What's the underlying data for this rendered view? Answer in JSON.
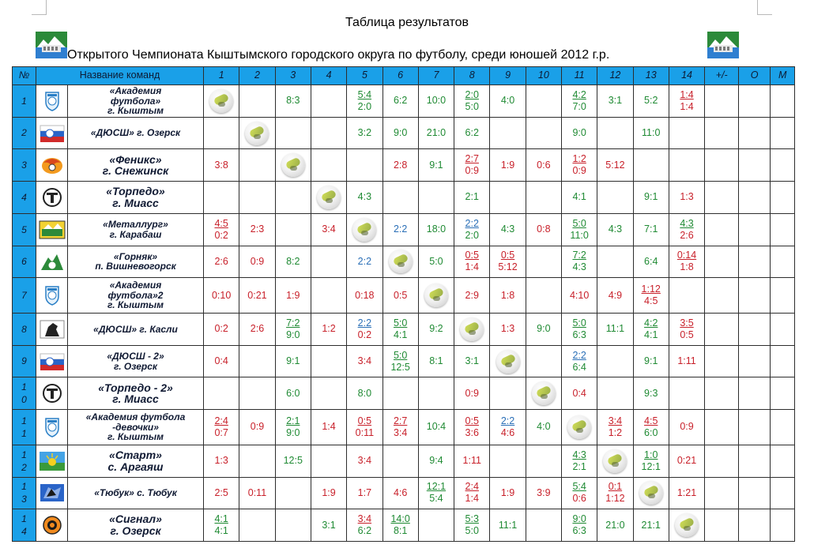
{
  "header": {
    "title": "Таблица результатов",
    "subtitle": "Открытого Чемпионата Кыштымского городского округа по футболу, среди юношей 2012 г.р."
  },
  "columns": {
    "num": "№",
    "name": "Название команд",
    "rounds": [
      "1",
      "2",
      "3",
      "4",
      "5",
      "6",
      "7",
      "8",
      "9",
      "10",
      "11",
      "12",
      "13",
      "14"
    ],
    "diff": "+/-",
    "points": "О",
    "place": "М"
  },
  "colors": {
    "header_bg": "#1aa0e8",
    "win": "#1f8a33",
    "loss": "#c8202a",
    "draw": "#2a6fb7"
  },
  "rows": [
    {
      "num": [
        "1"
      ],
      "logo": "shield-logo-icon",
      "team_lines": [
        "«Академия",
        "футбола»",
        "г. Кыштым"
      ],
      "results": [
        {
          "ball": true
        },
        {},
        {
          "t": "8:3",
          "c": "win"
        },
        {},
        {
          "t": "5:4",
          "b": "2:0",
          "c": "win"
        },
        {
          "t": "6:2",
          "c": "win"
        },
        {
          "t": "10:0",
          "c": "win"
        },
        {
          "t": "2:0",
          "b": "5:0",
          "c": "win"
        },
        {
          "t": "4:0",
          "c": "win"
        },
        {},
        {
          "t": "4:2",
          "b": "7:0",
          "c": "win"
        },
        {
          "t": "3:1",
          "c": "win"
        },
        {
          "t": "5:2",
          "c": "win"
        },
        {
          "t": "1:4",
          "b": "1:4",
          "c": "loss"
        }
      ]
    },
    {
      "num": [
        "2"
      ],
      "logo": "flag-logo-icon",
      "team_lines": [
        "«ДЮСШ» г. Озерск"
      ],
      "results": [
        {},
        {
          "ball": true
        },
        {},
        {},
        {
          "t": "3:2",
          "c": "win"
        },
        {
          "t": "9:0",
          "c": "win"
        },
        {
          "t": "21:0",
          "c": "win"
        },
        {
          "t": "6:2",
          "c": "win"
        },
        {},
        {},
        {
          "t": "9:0",
          "c": "win"
        },
        {},
        {
          "t": "11:0",
          "c": "win"
        },
        {}
      ]
    },
    {
      "num": [
        "3"
      ],
      "logo": "phoenix-logo-icon",
      "team_lines": [
        "«Феникс»",
        "г. Снежинск"
      ],
      "big": true,
      "results": [
        {
          "t": "3:8",
          "c": "loss"
        },
        {},
        {
          "ball": true
        },
        {},
        {},
        {
          "t": "2:8",
          "c": "loss"
        },
        {
          "t": "9:1",
          "c": "win"
        },
        {
          "t": "2:7",
          "b": "0:9",
          "c": "loss"
        },
        {
          "t": "1:9",
          "c": "loss"
        },
        {
          "t": "0:6",
          "c": "loss"
        },
        {
          "t": "1:2",
          "b": "0:9",
          "c": "loss"
        },
        {
          "t": "5:12",
          "c": "loss"
        },
        {},
        {}
      ]
    },
    {
      "num": [
        "4"
      ],
      "logo": "torpedo-logo-icon",
      "team_lines": [
        "«Торпедо»",
        "г. Миасс"
      ],
      "big": true,
      "results": [
        {},
        {},
        {},
        {
          "ball": true
        },
        {
          "t": "4:3",
          "c": "win"
        },
        {},
        {},
        {
          "t": "2:1",
          "c": "win"
        },
        {},
        {},
        {
          "t": "4:1",
          "c": "win"
        },
        {},
        {
          "t": "9:1",
          "c": "win"
        },
        {
          "t": "1:3",
          "c": "loss"
        }
      ]
    },
    {
      "num": [
        "5"
      ],
      "logo": "metallurg-logo-icon",
      "team_lines": [
        "«Металлург»",
        "г. Карабаш"
      ],
      "results": [
        {
          "t": "4:5",
          "b": "0:2",
          "c": "loss"
        },
        {
          "t": "2:3",
          "c": "loss"
        },
        {},
        {
          "t": "3:4",
          "c": "loss"
        },
        {
          "ball": true
        },
        {
          "t": "2:2",
          "c": "draw"
        },
        {
          "t": "18:0",
          "c": "win"
        },
        {
          "t": "2:2",
          "b": "2:0",
          "c": "draw",
          "bc": "win"
        },
        {
          "t": "4:3",
          "c": "win"
        },
        {
          "t": "0:8",
          "c": "loss"
        },
        {
          "t": "5:0",
          "b": "11:0",
          "c": "win"
        },
        {
          "t": "4:3",
          "c": "win"
        },
        {
          "t": "7:1",
          "c": "win"
        },
        {
          "t": "4:3",
          "b": "2:6",
          "c": "win",
          "bc": "loss"
        }
      ]
    },
    {
      "num": [
        "6"
      ],
      "logo": "gornyak-logo-icon",
      "team_lines": [
        "«Горняк»",
        "п. Вишневогорск"
      ],
      "results": [
        {
          "t": "2:6",
          "c": "loss"
        },
        {
          "t": "0:9",
          "c": "loss"
        },
        {
          "t": "8:2",
          "c": "win"
        },
        {},
        {
          "t": "2:2",
          "c": "draw"
        },
        {
          "ball": true
        },
        {
          "t": "5:0",
          "c": "win"
        },
        {
          "t": "0:5",
          "b": "1:4",
          "c": "loss"
        },
        {
          "t": "0:5",
          "b": "5:12",
          "c": "loss"
        },
        {},
        {
          "t": "7:2",
          "b": "4:3",
          "c": "win"
        },
        {},
        {
          "t": "6:4",
          "c": "win"
        },
        {
          "t": "0:14",
          "b": "1:8",
          "c": "loss"
        }
      ]
    },
    {
      "num": [
        "7"
      ],
      "logo": "shield-logo-icon",
      "team_lines": [
        "«Академия",
        "футбола»2",
        "г. Кыштым"
      ],
      "tall": true,
      "results": [
        {
          "t": "0:10",
          "c": "loss"
        },
        {
          "t": "0:21",
          "c": "loss"
        },
        {
          "t": "1:9",
          "c": "loss"
        },
        {},
        {
          "t": "0:18",
          "c": "loss"
        },
        {
          "t": "0:5",
          "c": "loss"
        },
        {
          "ball": true
        },
        {
          "t": "2:9",
          "c": "loss"
        },
        {
          "t": "1:8",
          "c": "loss"
        },
        {},
        {
          "t": "4:10",
          "c": "loss"
        },
        {
          "t": "4:9",
          "c": "loss"
        },
        {
          "t": "1:12",
          "b": "4:5",
          "c": "loss"
        },
        {}
      ]
    },
    {
      "num": [
        "8"
      ],
      "logo": "horse-logo-icon",
      "team_lines": [
        "«ДЮСШ» г. Касли"
      ],
      "results": [
        {
          "t": "0:2",
          "c": "loss"
        },
        {
          "t": "2:6",
          "c": "loss"
        },
        {
          "t": "7:2",
          "b": "9:0",
          "c": "win"
        },
        {
          "t": "1:2",
          "c": "loss"
        },
        {
          "t": "2:2",
          "b": "0:2",
          "c": "draw",
          "bc": "loss"
        },
        {
          "t": "5:0",
          "b": "4:1",
          "c": "win"
        },
        {
          "t": "9:2",
          "c": "win"
        },
        {
          "ball": true
        },
        {
          "t": "1:3",
          "c": "loss"
        },
        {
          "t": "9:0",
          "c": "win"
        },
        {
          "t": "5:0",
          "b": "6:3",
          "c": "win"
        },
        {
          "t": "11:1",
          "c": "win"
        },
        {
          "t": "4:2",
          "b": "4:1",
          "c": "win"
        },
        {
          "t": "3:5",
          "b": "0:5",
          "c": "loss"
        }
      ]
    },
    {
      "num": [
        "9"
      ],
      "logo": "flag-logo-icon",
      "team_lines": [
        "«ДЮСШ - 2»",
        "г. Озерск"
      ],
      "results": [
        {
          "t": "0:4",
          "c": "loss"
        },
        {},
        {
          "t": "9:1",
          "c": "win"
        },
        {},
        {
          "t": "3:4",
          "c": "loss"
        },
        {
          "t": "5:0",
          "b": "12:5",
          "c": "win"
        },
        {
          "t": "8:1",
          "c": "win"
        },
        {
          "t": "3:1",
          "c": "win"
        },
        {
          "ball": true
        },
        {},
        {
          "t": "2:2",
          "b": "6:4",
          "c": "draw",
          "bc": "win"
        },
        {},
        {
          "t": "9:1",
          "c": "win"
        },
        {
          "t": "1:11",
          "c": "loss"
        }
      ]
    },
    {
      "num": [
        "1",
        "0"
      ],
      "logo": "torpedo-logo-icon",
      "team_lines": [
        "«Торпедо - 2»",
        "г. Миасс"
      ],
      "big": true,
      "results": [
        {},
        {},
        {
          "t": "6:0",
          "c": "win"
        },
        {},
        {
          "t": "8:0",
          "c": "win"
        },
        {},
        {},
        {
          "t": "0:9",
          "c": "loss"
        },
        {},
        {
          "ball": true
        },
        {
          "t": "0:4",
          "c": "loss"
        },
        {},
        {
          "t": "9:3",
          "c": "win"
        },
        {}
      ]
    },
    {
      "num": [
        "1",
        "1"
      ],
      "logo": "shield-logo-icon",
      "team_lines": [
        "«Академия футбола",
        "-девочки»",
        "г. Кыштым"
      ],
      "tall": true,
      "results": [
        {
          "t": "2:4",
          "b": "0:7",
          "c": "loss"
        },
        {
          "t": "0:9",
          "c": "loss"
        },
        {
          "t": "2:1",
          "b": "9:0",
          "c": "win"
        },
        {
          "t": "1:4",
          "c": "loss"
        },
        {
          "t": "0:5",
          "b": "0:11",
          "c": "loss"
        },
        {
          "t": "2:7",
          "b": "3:4",
          "c": "loss"
        },
        {
          "t": "10:4",
          "c": "win"
        },
        {
          "t": "0:5",
          "b": "3:6",
          "c": "loss"
        },
        {
          "t": "2:2",
          "b": "4:6",
          "c": "draw",
          "bc": "loss"
        },
        {
          "t": "4:0",
          "c": "win"
        },
        {
          "ball": true
        },
        {
          "t": "3:4",
          "b": "1:2",
          "c": "loss"
        },
        {
          "t": "4:5",
          "b": "6:0",
          "c": "loss",
          "bc": "win"
        },
        {
          "t": "0:9",
          "c": "loss"
        }
      ]
    },
    {
      "num": [
        "1",
        "2"
      ],
      "logo": "start-logo-icon",
      "team_lines": [
        "«Старт»",
        "с. Аргаяш"
      ],
      "big": true,
      "results": [
        {
          "t": "1:3",
          "c": "loss"
        },
        {},
        {
          "t": "12:5",
          "c": "win"
        },
        {},
        {
          "t": "3:4",
          "c": "loss"
        },
        {},
        {
          "t": "9:4",
          "c": "win"
        },
        {
          "t": "1:11",
          "c": "loss"
        },
        {},
        {},
        {
          "t": "4:3",
          "b": "2:1",
          "c": "win"
        },
        {
          "ball": true
        },
        {
          "t": "1:0",
          "b": "12:1",
          "c": "win"
        },
        {
          "t": "0:21",
          "c": "loss"
        }
      ]
    },
    {
      "num": [
        "1",
        "3"
      ],
      "logo": "tyubuk-logo-icon",
      "team_lines": [
        "«Тюбук» с. Тюбук"
      ],
      "results": [
        {
          "t": "2:5",
          "c": "loss"
        },
        {
          "t": "0:11",
          "c": "loss"
        },
        {},
        {
          "t": "1:9",
          "c": "loss"
        },
        {
          "t": "1:7",
          "c": "loss"
        },
        {
          "t": "4:6",
          "c": "loss"
        },
        {
          "t": "12:1",
          "b": "5:4",
          "c": "win"
        },
        {
          "t": "2:4",
          "b": "1:4",
          "c": "loss"
        },
        {
          "t": "1:9",
          "c": "loss"
        },
        {
          "t": "3:9",
          "c": "loss"
        },
        {
          "t": "5:4",
          "b": "0:6",
          "c": "win",
          "bc": "loss"
        },
        {
          "t": "0:1",
          "b": "1:12",
          "c": "loss"
        },
        {
          "ball": true
        },
        {
          "t": "1:21",
          "c": "loss"
        }
      ]
    },
    {
      "num": [
        "1",
        "4"
      ],
      "logo": "signal-logo-icon",
      "team_lines": [
        "«Сигнал»",
        "г. Озерск"
      ],
      "big": true,
      "results": [
        {
          "t": "4:1",
          "b": "4:1",
          "c": "win"
        },
        {},
        {},
        {
          "t": "3:1",
          "c": "win"
        },
        {
          "t": "3:4",
          "b": "6:2",
          "c": "loss",
          "bc": "win"
        },
        {
          "t": "14:0",
          "b": "8:1",
          "c": "win"
        },
        {},
        {
          "t": "5:3",
          "b": "5:0",
          "c": "win"
        },
        {
          "t": "11:1",
          "c": "win"
        },
        {},
        {
          "t": "9:0",
          "b": "6:3",
          "c": "win"
        },
        {
          "t": "21:0",
          "c": "win"
        },
        {
          "t": "21:1",
          "c": "win"
        },
        {
          "ball": true
        }
      ]
    }
  ]
}
